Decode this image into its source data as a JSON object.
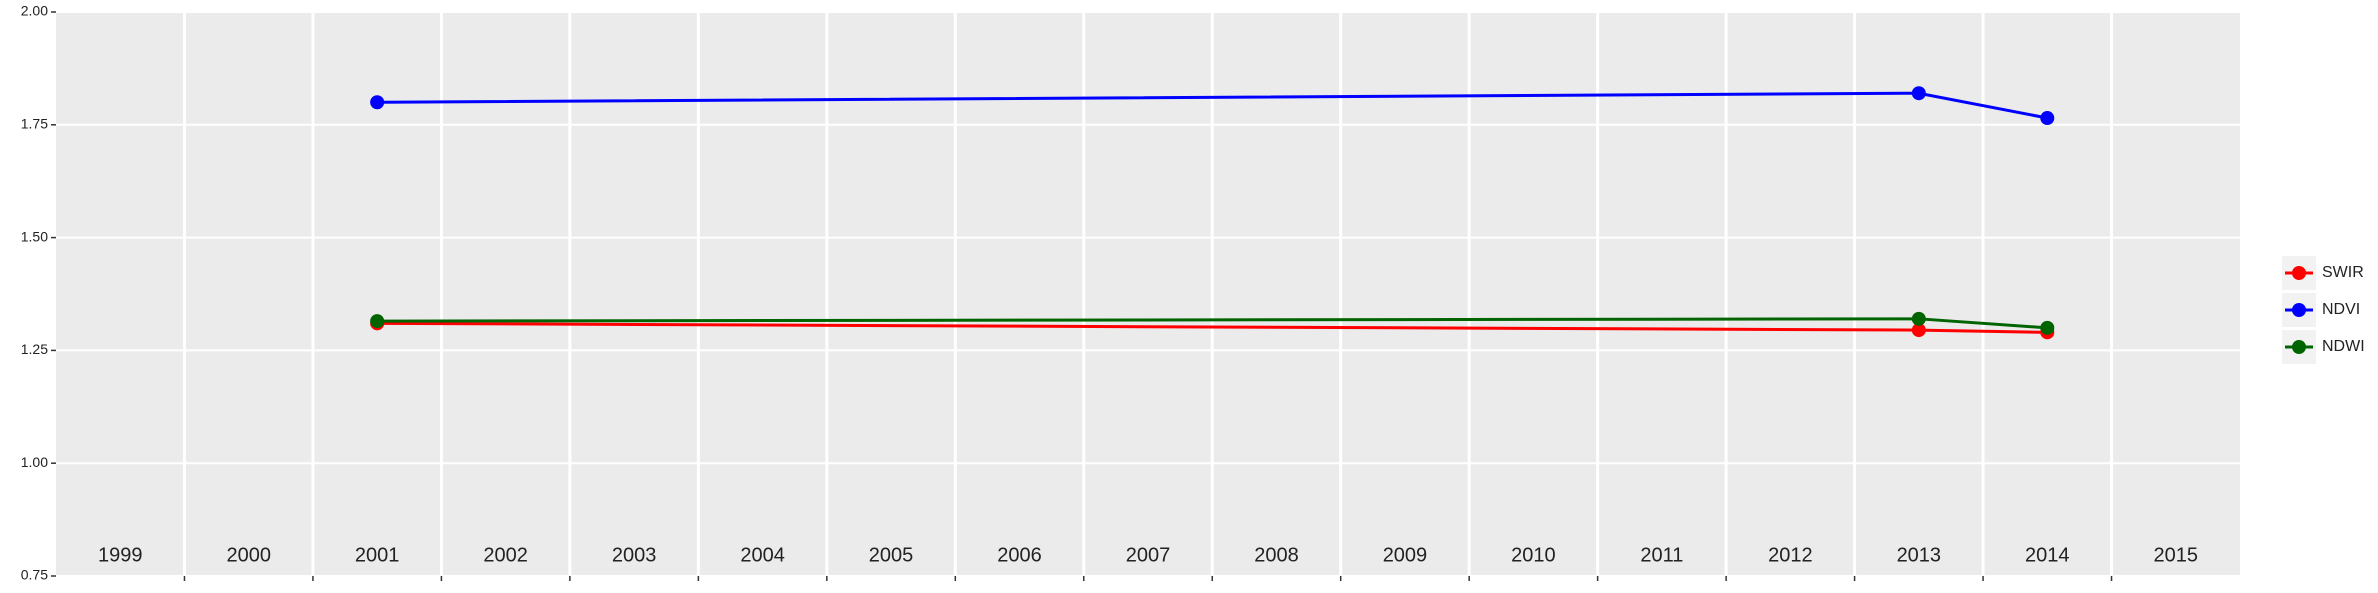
{
  "chart_data": {
    "type": "line",
    "x": [
      2001,
      2013,
      2014
    ],
    "xlim": [
      1998.5,
      2015.5
    ],
    "xticks": [
      1999,
      2000,
      2001,
      2002,
      2003,
      2004,
      2005,
      2006,
      2007,
      2008,
      2009,
      2010,
      2011,
      2012,
      2013,
      2014,
      2015
    ],
    "ylim": [
      0.75,
      2.0
    ],
    "yticks": [
      0.75,
      {
        "value": 1.0,
        "label": "1.00"
      },
      1.25,
      {
        "value": 1.5,
        "label": "1.50"
      },
      1.75,
      {
        "value": 2.0,
        "label": "2.00"
      }
    ],
    "grid": true,
    "legend": "right",
    "series": [
      {
        "name": "SWIR",
        "color": "#ff0000",
        "values": [
          1.31,
          1.295,
          1.29
        ]
      },
      {
        "name": "NDVI",
        "color": "#0000ff",
        "values": [
          1.8,
          1.82,
          1.765
        ]
      },
      {
        "name": "NDWI",
        "color": "#006400",
        "values": [
          1.315,
          1.32,
          1.3
        ]
      }
    ]
  }
}
